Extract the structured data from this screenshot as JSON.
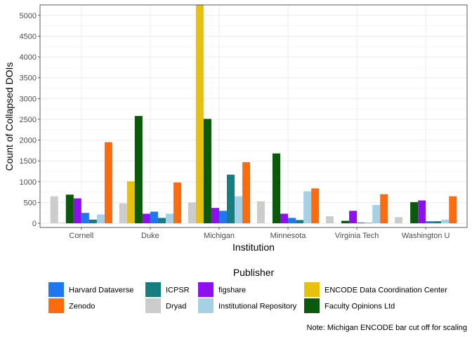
{
  "chart_data": {
    "type": "bar",
    "xlabel": "Institution",
    "ylabel": "Count of Collapsed DOIs",
    "ylim": [
      -100,
      5250
    ],
    "yticks": [
      0,
      500,
      1000,
      1500,
      2000,
      2500,
      3000,
      3500,
      4000,
      4500,
      5000
    ],
    "grid": true,
    "legend_title": "Publisher",
    "legend_position": "bottom",
    "caption": "Note: Michigan ENCODE bar cut off for scaling",
    "categories": [
      "Cornell",
      "Duke",
      "Michigan",
      "Minnesota",
      "Virginia Tech",
      "Washington U"
    ],
    "series": [
      {
        "name": "Dryad",
        "color": "#cccccc",
        "values": [
          650,
          480,
          500,
          530,
          170,
          150
        ]
      },
      {
        "name": "ENCODE Data Coordination Center",
        "color": "#e8c00e",
        "values": [
          10,
          1010,
          5250,
          0,
          0,
          0
        ]
      },
      {
        "name": "Faculty Opinions Ltd",
        "color": "#0b5a0b",
        "values": [
          690,
          2580,
          2510,
          1680,
          60,
          510
        ]
      },
      {
        "name": "figshare",
        "color": "#8f0ff0",
        "values": [
          600,
          230,
          370,
          230,
          300,
          550
        ]
      },
      {
        "name": "Harvard Dataverse",
        "color": "#1f78f0",
        "values": [
          250,
          280,
          300,
          130,
          20,
          50
        ]
      },
      {
        "name": "ICPSR",
        "color": "#157f7f",
        "values": [
          90,
          130,
          1170,
          80,
          10,
          50
        ]
      },
      {
        "name": "Institutional Repository",
        "color": "#a6d0e6",
        "values": [
          210,
          230,
          650,
          770,
          440,
          90
        ]
      },
      {
        "name": "Zenodo",
        "color": "#ff6a0d",
        "values": [
          1950,
          980,
          1470,
          840,
          700,
          650
        ]
      }
    ],
    "legend_order": [
      "Harvard Dataverse",
      "Zenodo",
      "ICPSR",
      "Dryad",
      "figshare",
      "Institutional Repository",
      "ENCODE Data Coordination Center",
      "Faculty Opinions Ltd"
    ]
  }
}
